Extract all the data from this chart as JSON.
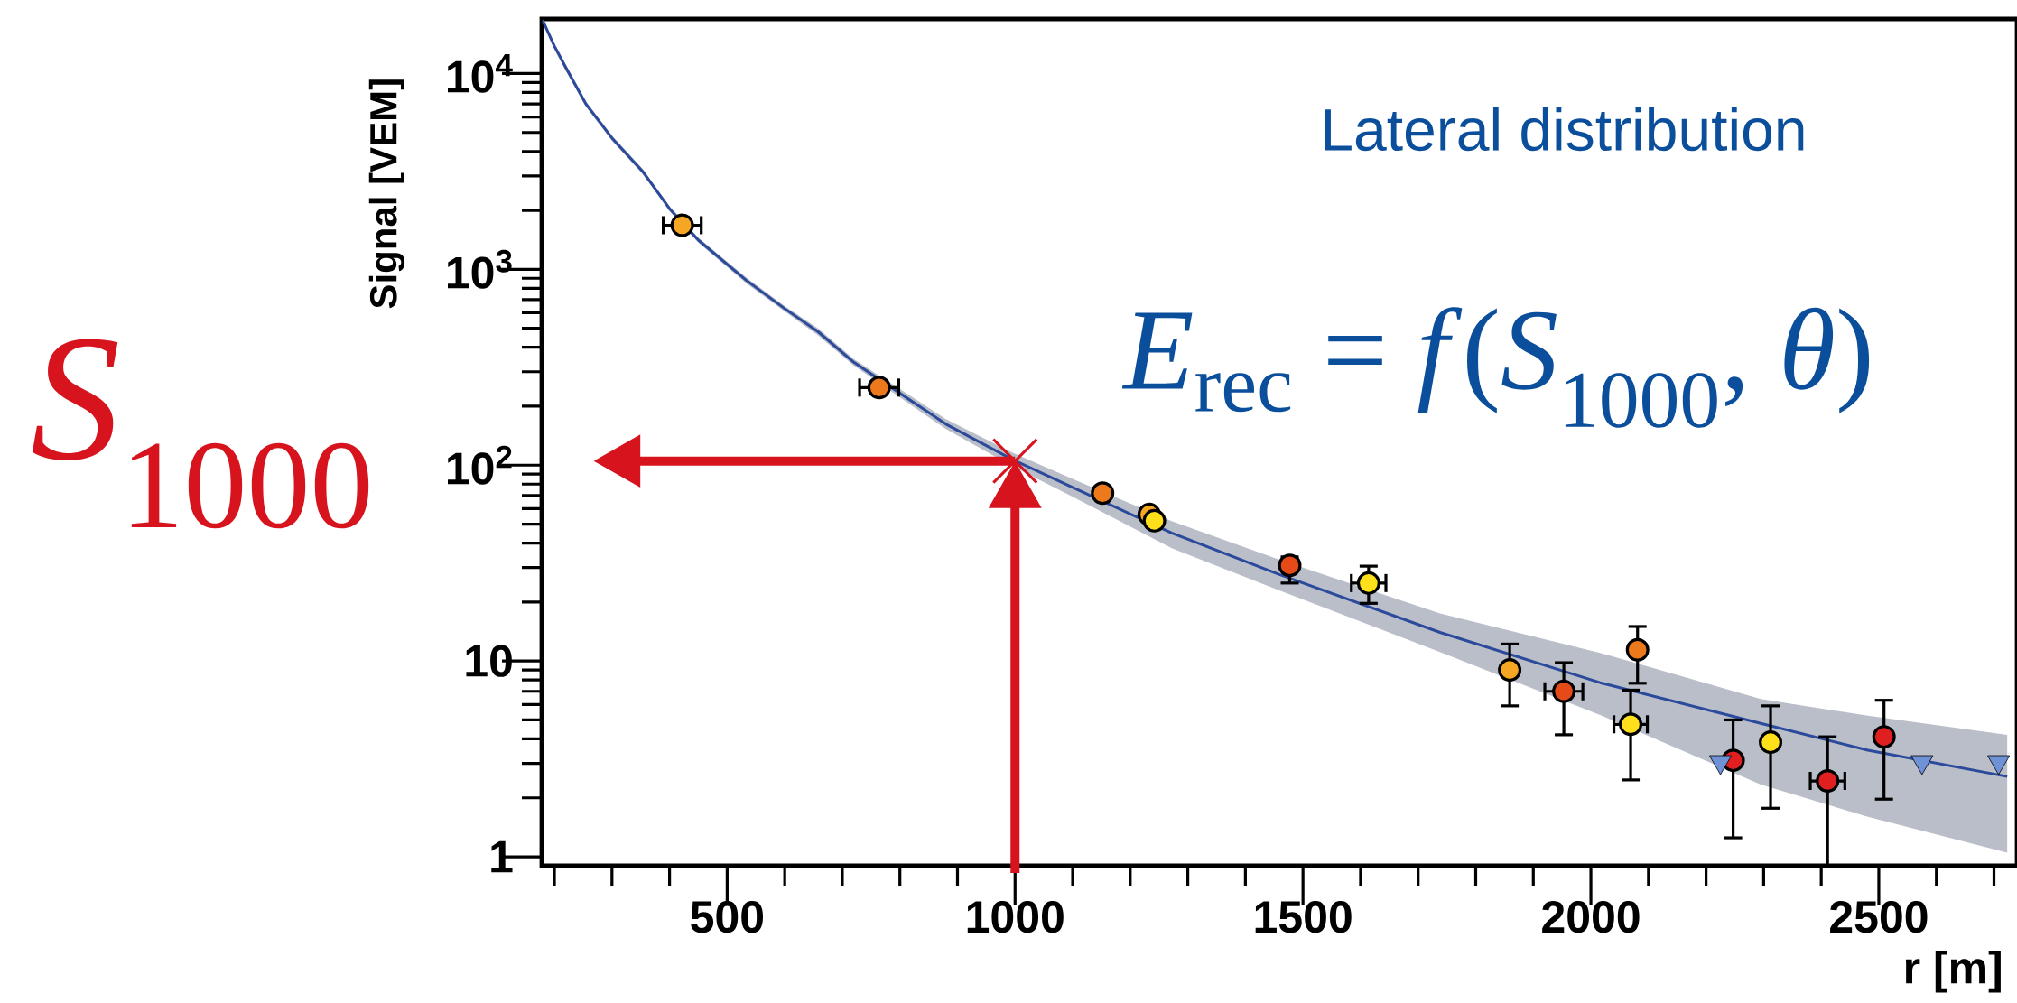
{
  "chart_data": {
    "type": "scatter",
    "xlabel": "r [m]",
    "ylabel": "Signal [VEM]",
    "xlim": [
      178,
      2740
    ],
    "ylim": [
      0.9,
      19000
    ],
    "log": "y",
    "grid": false,
    "xticks": [
      500,
      1000,
      1500,
      2000,
      2500
    ],
    "yticks": [
      1,
      10,
      {
        "value": 100,
        "label": "10$^{2}$"
      },
      {
        "value": 1000,
        "label": "10$^{3}$"
      },
      {
        "value": 10000,
        "label": "10$^{4}$"
      }
    ],
    "series": [
      {
        "type": "line",
        "color": "#2b4a9b",
        "line_style": "solid",
        "marker": "none",
        "x": [
          180,
          200,
          220,
          255,
          300,
          353,
          400,
          450,
          533,
          600,
          658,
          720,
          880,
          995,
          1100,
          1272,
          1458,
          1738,
          2016,
          2295,
          2481,
          2723
        ],
        "values": [
          18600,
          13800,
          10700,
          6970,
          4680,
          3170,
          2040,
          1410,
          880,
          630,
          480,
          335,
          162,
          107,
          77,
          45,
          27.7,
          14.0,
          7.75,
          4.8,
          3.5,
          2.57
        ],
        "lower": [
          18000,
          13300,
          10300,
          6750,
          4530,
          3070,
          1980,
          1370,
          850,
          610,
          460,
          322,
          153,
          99,
          69,
          37.7,
          23,
          11.1,
          5.3,
          2.34,
          1.6,
          1.05
        ],
        "upper": [
          18900,
          14300,
          11100,
          7200,
          4830,
          3270,
          2100,
          1450,
          910,
          650,
          500,
          348,
          172,
          116,
          85,
          51.8,
          33,
          17.5,
          11,
          6.4,
          5.25,
          4.2
        ]
      },
      {
        "marker": "circle",
        "x": [
          422,
          764,
          1152,
          1233,
          1242,
          1477,
          1614,
          1859,
          1953,
          2081,
          2069,
          2247,
          2312,
          2411,
          2509
        ],
        "values": [
          1680,
          249,
          72,
          56,
          52,
          30.8,
          25,
          9.0,
          7.0,
          11.4,
          4.75,
          3.11,
          3.85,
          2.44,
          4.1
        ],
        "colors": [
          "#f5a623",
          "#ec7a1c",
          "#ec7a1c",
          "#f5a623",
          "#ffe01a",
          "#e64a19",
          "#ffe01a",
          "#f5a623",
          "#e64a19",
          "#ec7a1c",
          "#ffe01a",
          "#e02020",
          "#ffe01a",
          "#e02020",
          "#e02020"
        ],
        "errors": [
          null,
          null,
          null,
          null,
          null,
          [
            25,
            34
          ],
          [
            19.7,
            30.5
          ],
          [
            5.9,
            12.2
          ],
          [
            4.2,
            9.8
          ],
          [
            7.7,
            15
          ],
          [
            2.47,
            7.1
          ],
          [
            1.25,
            5.0
          ],
          [
            1.77,
            5.9
          ],
          [
            0.9,
            4.1
          ],
          [
            1.97,
            6.3
          ]
        ],
        "xerrors": [
          33,
          34,
          null,
          null,
          null,
          null,
          30,
          null,
          33,
          null,
          29,
          null,
          null,
          30,
          null
        ]
      },
      {
        "marker": "triangle",
        "color": "#6f91d6",
        "x": [
          2225,
          2575,
          2708
        ],
        "values": [
          3.05,
          3.05,
          3.05
        ]
      }
    ],
    "ref_lines": [
      {
        "axis": "x",
        "value": 1000,
        "color": "#d7141e"
      },
      {
        "axis": "y",
        "value": 105,
        "color": "#d7141e"
      }
    ],
    "annotations": [
      "Lateral distribution",
      "*S*$_{1000}$",
      "*E*$_{rec}$ = *f*(*S*$_{1000}$, *θ*)"
    ]
  }
}
